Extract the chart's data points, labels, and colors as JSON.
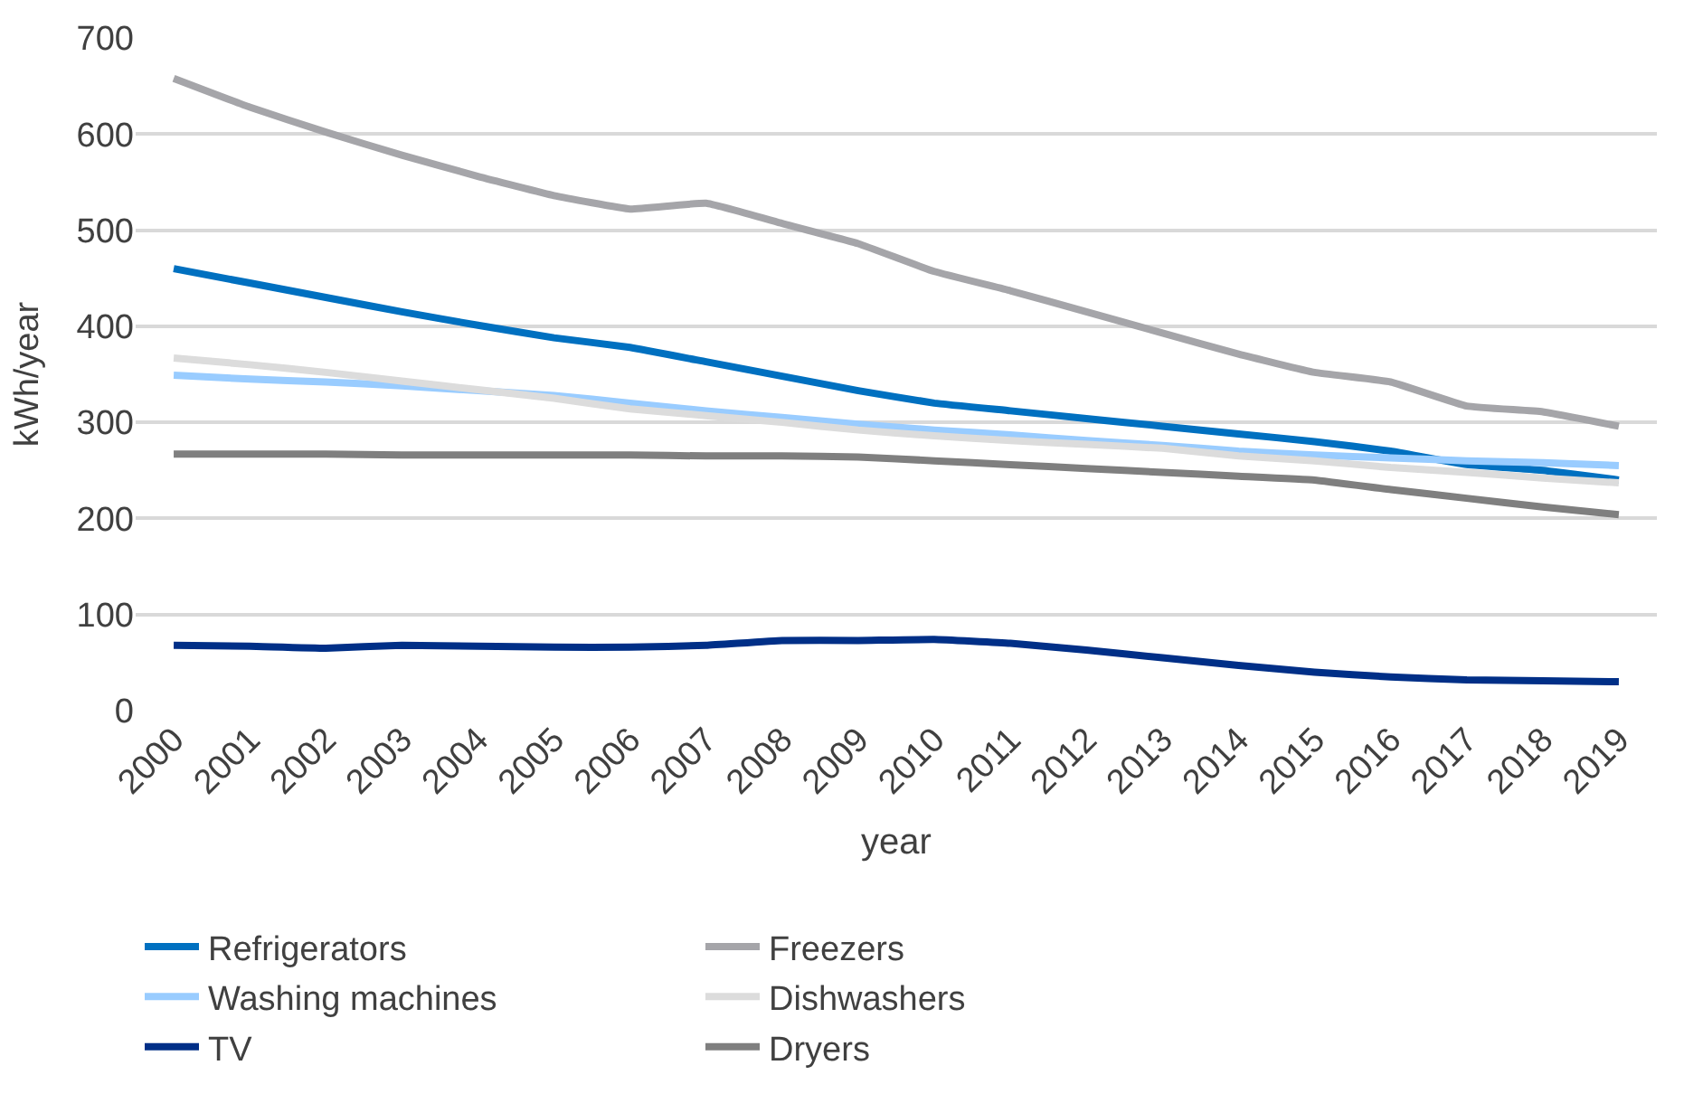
{
  "chart_data": {
    "type": "line",
    "xlabel": "year",
    "ylabel": "kWh/year",
    "categories": [
      "2000",
      "2001",
      "2002",
      "2003",
      "2004",
      "2005",
      "2006",
      "2007",
      "2008",
      "2009",
      "2010",
      "2011",
      "2012",
      "2013",
      "2014",
      "2015",
      "2016",
      "2017",
      "2018",
      "2019"
    ],
    "ylim": [
      0,
      700
    ],
    "yticks": [
      0,
      100,
      200,
      300,
      400,
      500,
      600,
      700
    ],
    "grid": "y",
    "legend": "bottom",
    "marker": "none",
    "line_style": "solid",
    "series": [
      {
        "name": "Refrigerators",
        "color": "#0070c0",
        "values": [
          460,
          445,
          430,
          415,
          401,
          388,
          378,
          363,
          348,
          333,
          320,
          312,
          304,
          296,
          288,
          280,
          270,
          256,
          250,
          240
        ]
      },
      {
        "name": "Freezers",
        "color": "#a5a5a9",
        "values": [
          658,
          628,
          602,
          578,
          556,
          536,
          522,
          528,
          507,
          486,
          457,
          437,
          415,
          393,
          371,
          352,
          342,
          317,
          311,
          296
        ]
      },
      {
        "name": "Washing machines",
        "color": "#99ccff",
        "values": [
          349,
          345,
          342,
          338,
          333,
          328,
          320,
          312,
          305,
          298,
          292,
          287,
          281,
          276,
          270,
          266,
          263,
          260,
          258,
          255
        ]
      },
      {
        "name": "Dishwashers",
        "color": "#dcdcdc",
        "values": [
          367,
          360,
          352,
          343,
          334,
          325,
          314,
          307,
          300,
          292,
          286,
          281,
          277,
          273,
          265,
          260,
          253,
          248,
          242,
          237
        ]
      },
      {
        "name": "TV",
        "color": "#002f87",
        "values": [
          68,
          67,
          65,
          68,
          67,
          66,
          66,
          68,
          73,
          73,
          74,
          70,
          63,
          55,
          47,
          40,
          35,
          32,
          31,
          30
        ]
      },
      {
        "name": "Dryers",
        "color": "#7f7f7f",
        "values": [
          267,
          267,
          267,
          266,
          266,
          266,
          266,
          265,
          265,
          264,
          260,
          256,
          252,
          248,
          244,
          240,
          230,
          221,
          212,
          204
        ]
      }
    ]
  }
}
